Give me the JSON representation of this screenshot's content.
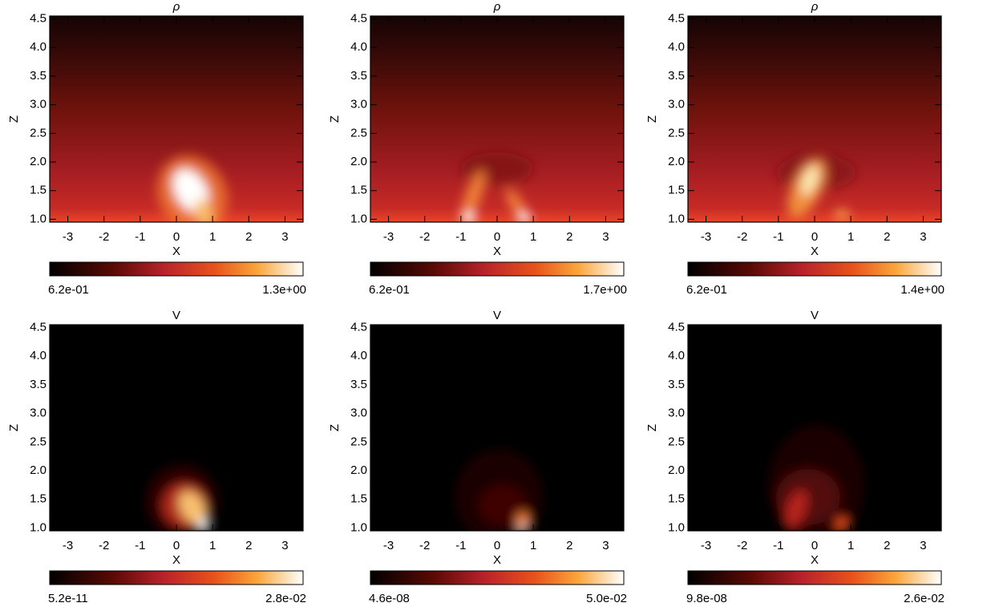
{
  "chart_data": [
    {
      "type": "heatmap",
      "title": "ρ",
      "x_label": "X",
      "y_label": "Z",
      "background": "density",
      "xlim": [
        -3.5,
        3.5
      ],
      "ylim": [
        0.95,
        4.55
      ],
      "xticks": [
        -3,
        -2,
        -1,
        0,
        1,
        2,
        3
      ],
      "yticks": [
        {
          "value": 1,
          "label": "1.0"
        },
        {
          "value": 1.5,
          "label": "1.5"
        },
        {
          "value": 2,
          "label": "2.0"
        },
        {
          "value": 2.5,
          "label": "2.5"
        },
        {
          "value": 3,
          "label": "3.0"
        },
        {
          "value": 3.5,
          "label": "3.5"
        },
        {
          "value": 4,
          "label": "4.0"
        },
        {
          "value": 4.5,
          "label": "4.5"
        }
      ],
      "clim": [
        0.62,
        1.3
      ],
      "cticks": [
        {
          "value": 0.62,
          "label": "6.2e-01"
        },
        {
          "value": 1.3,
          "label": "1.3e+00"
        }
      ]
    },
    {
      "type": "heatmap",
      "title": "ρ",
      "x_label": "X",
      "y_label": "Z",
      "background": "density",
      "xlim": [
        -3.5,
        3.5
      ],
      "ylim": [
        0.95,
        4.55
      ],
      "xticks": [
        -3,
        -2,
        -1,
        0,
        1,
        2,
        3
      ],
      "yticks": [
        {
          "value": 1,
          "label": "1.0"
        },
        {
          "value": 1.5,
          "label": "1.5"
        },
        {
          "value": 2,
          "label": "2.0"
        },
        {
          "value": 2.5,
          "label": "2.5"
        },
        {
          "value": 3,
          "label": "3.0"
        },
        {
          "value": 3.5,
          "label": "3.5"
        },
        {
          "value": 4,
          "label": "4.0"
        },
        {
          "value": 4.5,
          "label": "4.5"
        }
      ],
      "clim": [
        0.62,
        1.7
      ],
      "cticks": [
        {
          "value": 0.62,
          "label": "6.2e-01"
        },
        {
          "value": 1.7,
          "label": "1.7e+00"
        }
      ]
    },
    {
      "type": "heatmap",
      "title": "ρ",
      "x_label": "X",
      "y_label": "Z",
      "background": "density",
      "xlim": [
        -3.5,
        3.5
      ],
      "ylim": [
        0.95,
        4.55
      ],
      "xticks": [
        -3,
        -2,
        -1,
        0,
        1,
        2,
        3
      ],
      "yticks": [
        {
          "value": 1,
          "label": "1.0"
        },
        {
          "value": 1.5,
          "label": "1.5"
        },
        {
          "value": 2,
          "label": "2.0"
        },
        {
          "value": 2.5,
          "label": "2.5"
        },
        {
          "value": 3,
          "label": "3.0"
        },
        {
          "value": 3.5,
          "label": "3.5"
        },
        {
          "value": 4,
          "label": "4.0"
        },
        {
          "value": 4.5,
          "label": "4.5"
        }
      ],
      "clim": [
        0.62,
        1.4
      ],
      "cticks": [
        {
          "value": 0.62,
          "label": "6.2e-01"
        },
        {
          "value": 1.4,
          "label": "1.4e+00"
        }
      ]
    },
    {
      "type": "heatmap",
      "title": "V",
      "x_label": "X",
      "y_label": "Z",
      "background": "velocity",
      "xlim": [
        -3.5,
        3.5
      ],
      "ylim": [
        0.95,
        4.55
      ],
      "xticks": [
        -3,
        -2,
        -1,
        0,
        1,
        2,
        3
      ],
      "yticks": [
        {
          "value": 1,
          "label": "1.0"
        },
        {
          "value": 1.5,
          "label": "1.5"
        },
        {
          "value": 2,
          "label": "2.0"
        },
        {
          "value": 2.5,
          "label": "2.5"
        },
        {
          "value": 3,
          "label": "3.0"
        },
        {
          "value": 3.5,
          "label": "3.5"
        },
        {
          "value": 4,
          "label": "4.0"
        },
        {
          "value": 4.5,
          "label": "4.5"
        }
      ],
      "clim": [
        5.2e-11,
        0.028
      ],
      "cticks": [
        {
          "value": 5.2e-11,
          "label": "5.2e-11"
        },
        {
          "value": 0.028,
          "label": "2.8e-02"
        }
      ]
    },
    {
      "type": "heatmap",
      "title": "V",
      "x_label": "X",
      "y_label": "Z",
      "background": "velocity",
      "xlim": [
        -3.5,
        3.5
      ],
      "ylim": [
        0.95,
        4.55
      ],
      "xticks": [
        -3,
        -2,
        -1,
        0,
        1,
        2,
        3
      ],
      "yticks": [
        {
          "value": 1,
          "label": "1.0"
        },
        {
          "value": 1.5,
          "label": "1.5"
        },
        {
          "value": 2,
          "label": "2.0"
        },
        {
          "value": 2.5,
          "label": "2.5"
        },
        {
          "value": 3,
          "label": "3.0"
        },
        {
          "value": 3.5,
          "label": "3.5"
        },
        {
          "value": 4,
          "label": "4.0"
        },
        {
          "value": 4.5,
          "label": "4.5"
        }
      ],
      "clim": [
        4.6e-08,
        0.05
      ],
      "cticks": [
        {
          "value": 4.6e-08,
          "label": "4.6e-08"
        },
        {
          "value": 0.05,
          "label": "5.0e-02"
        }
      ]
    },
    {
      "type": "heatmap",
      "title": "V",
      "x_label": "X",
      "y_label": "Z",
      "background": "velocity",
      "xlim": [
        -3.5,
        3.5
      ],
      "ylim": [
        0.95,
        4.55
      ],
      "xticks": [
        -3,
        -2,
        -1,
        0,
        1,
        2,
        3
      ],
      "yticks": [
        {
          "value": 1,
          "label": "1.0"
        },
        {
          "value": 1.5,
          "label": "1.5"
        },
        {
          "value": 2,
          "label": "2.0"
        },
        {
          "value": 2.5,
          "label": "2.5"
        },
        {
          "value": 3,
          "label": "3.0"
        },
        {
          "value": 3.5,
          "label": "3.5"
        },
        {
          "value": 4,
          "label": "4.0"
        },
        {
          "value": 4.5,
          "label": "4.5"
        }
      ],
      "clim": [
        9.8e-08,
        0.026
      ],
      "cticks": [
        {
          "value": 9.8e-08,
          "label": "9.8e-08"
        },
        {
          "value": 0.026,
          "label": "2.6e-02"
        }
      ]
    }
  ]
}
